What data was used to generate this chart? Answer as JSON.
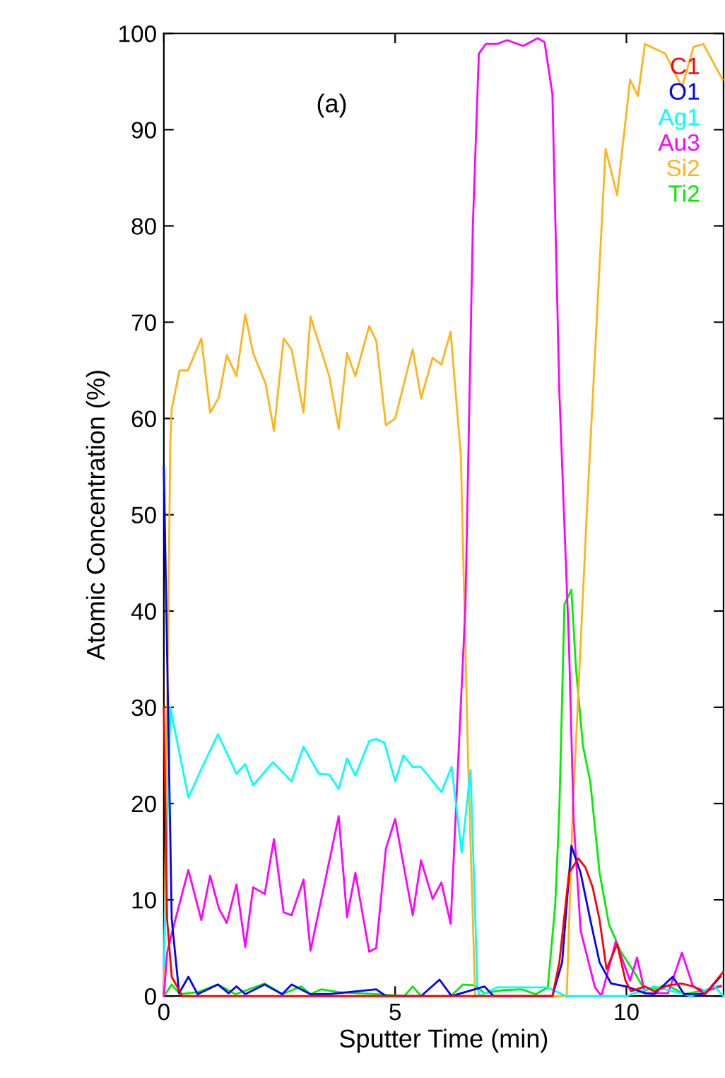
{
  "chart_data": {
    "type": "line",
    "xlabel": "Sputter Time (min)",
    "ylabel": "Atomic Concentration (%)",
    "annotations": [
      "(a)"
    ],
    "xlim": [
      0,
      12.1
    ],
    "xticks": [
      0,
      5,
      10
    ],
    "ylim": [
      0,
      100
    ],
    "yticks": [
      0,
      10,
      20,
      30,
      40,
      50,
      60,
      70,
      80,
      90,
      100
    ],
    "grid": false,
    "legend": "top right",
    "marker": "none",
    "line_style": "solid",
    "series": [
      {
        "name": "C1",
        "color": "#ff0000",
        "x": [
          0,
          0.07,
          0.17,
          0.4,
          1,
          2,
          3,
          4,
          5,
          6,
          7,
          8,
          8.4,
          8.55,
          8.76,
          8.96,
          9.11,
          9.27,
          9.42,
          9.57,
          9.8,
          9.98,
          10.1,
          10.4,
          10.6,
          10.9,
          11.2,
          11.45,
          11.7,
          12.09
        ],
        "values": [
          30,
          8,
          2,
          0,
          0,
          0,
          0,
          0,
          0,
          0,
          0,
          0,
          0,
          3.5,
          12.8,
          14.3,
          13.4,
          11.3,
          7.9,
          2.8,
          5.4,
          1.6,
          0.5,
          1,
          0.5,
          1.1,
          1.3,
          1,
          0.2,
          2.5
        ]
      },
      {
        "name": "O1",
        "color": "#0000ff",
        "x": [
          0,
          0.17,
          0.33,
          0.53,
          0.73,
          1.17,
          1.4,
          1.57,
          1.76,
          2.18,
          2.56,
          2.76,
          3.17,
          3.58,
          4.59,
          4.8,
          5.56,
          5.96,
          6.22,
          6.93,
          7.13,
          8.4,
          8.61,
          8.81,
          9.01,
          9.22,
          9.42,
          9.67,
          10.0,
          10.4,
          10.6,
          11.0,
          11.25,
          11.7,
          12.03
        ],
        "values": [
          55,
          8,
          0.3,
          2,
          0.2,
          1.2,
          0.3,
          1,
          0.2,
          1.2,
          0.2,
          1.2,
          0.2,
          0.2,
          0.7,
          0,
          0,
          1.7,
          0,
          1,
          0,
          0,
          3.5,
          15.6,
          12.8,
          7.9,
          3.5,
          1.3,
          1,
          0.3,
          0.2,
          2,
          0.2,
          0.2,
          2
        ]
      },
      {
        "name": "Ag1",
        "color": "#00ffff",
        "x": [
          0,
          0.14,
          0.53,
          0.81,
          1.17,
          1.57,
          1.76,
          1.93,
          2.36,
          2.76,
          3.02,
          3.35,
          3.58,
          3.78,
          3.96,
          4.14,
          4.44,
          4.59,
          4.77,
          5.0,
          5.18,
          5.38,
          5.56,
          6.0,
          6.22,
          6.44,
          6.63,
          6.78,
          6.82,
          7.2,
          7.8,
          8.3,
          8.7,
          10.0,
          10.6,
          11.0,
          11.4,
          11.9,
          12.1
        ],
        "values": [
          3,
          30,
          20.6,
          23.6,
          27.2,
          23.1,
          24.1,
          21.9,
          24.3,
          22.3,
          25.9,
          23.1,
          23,
          21.5,
          24.7,
          22.9,
          26.5,
          26.7,
          26.3,
          22.3,
          25,
          23.8,
          23.8,
          21.2,
          23.8,
          14.9,
          23.5,
          0.9,
          0,
          0.9,
          0.9,
          0.9,
          0,
          0,
          1,
          0.5,
          0,
          1,
          0
        ]
      },
      {
        "name": "Au3",
        "color": "#ff00ff",
        "x": [
          0,
          0.07,
          0.17,
          0.53,
          0.81,
          1.0,
          1.19,
          1.36,
          1.57,
          1.76,
          1.93,
          2.18,
          2.38,
          2.59,
          2.76,
          3.02,
          3.17,
          3.78,
          3.96,
          4.14,
          4.44,
          4.59,
          4.8,
          5.0,
          5.38,
          5.56,
          5.81,
          6.0,
          6.2,
          6.52,
          6.68,
          6.81,
          6.96,
          7.2,
          7.42,
          7.77,
          8.08,
          8.23,
          8.4,
          8.55,
          8.76,
          8.86,
          9.01,
          9.32,
          9.46,
          9.77,
          10.08,
          10.23,
          10.4,
          10.9,
          11.2,
          11.44,
          11.7,
          12.05
        ],
        "values": [
          0,
          4.5,
          6.5,
          13.1,
          7.9,
          12.5,
          9.1,
          7.6,
          11.6,
          5.1,
          11.3,
          10.6,
          16.3,
          8.7,
          8.4,
          12.1,
          4.7,
          18.7,
          8.2,
          12.8,
          4.6,
          5,
          15.3,
          18.4,
          8.4,
          14.1,
          10.1,
          11.8,
          7.5,
          40.6,
          80,
          97.9,
          98.9,
          98.9,
          99.3,
          98.7,
          99.5,
          99.1,
          93.7,
          62.8,
          36.3,
          18.2,
          6.8,
          0.9,
          0,
          5.7,
          1.6,
          4,
          0.3,
          0.3,
          4.5,
          1,
          0.5,
          1
        ]
      },
      {
        "name": "Si2",
        "color": "#ffb31a",
        "x": [
          0,
          0.14,
          0.17,
          0.34,
          0.52,
          0.81,
          1.0,
          1.19,
          1.36,
          1.57,
          1.76,
          1.93,
          2.2,
          2.38,
          2.59,
          2.76,
          3.02,
          3.17,
          3.58,
          3.78,
          3.96,
          4.14,
          4.44,
          4.59,
          4.8,
          5.0,
          5.38,
          5.56,
          5.81,
          6.0,
          6.2,
          6.42,
          6.58,
          6.73,
          8.71,
          8.84,
          9.15,
          9.55,
          9.8,
          10.08,
          10.25,
          10.4,
          10.84,
          11.2,
          11.45,
          11.66,
          12.08
        ],
        "values": [
          0,
          57.5,
          61,
          65,
          65,
          68.3,
          60.6,
          62.2,
          66.6,
          64.4,
          70.8,
          66.8,
          63.6,
          58.7,
          68.3,
          67.2,
          60.6,
          70.6,
          64.3,
          58.9,
          66.8,
          64.4,
          69.6,
          68.1,
          59.3,
          60,
          67.2,
          62.1,
          66.3,
          65.6,
          69,
          56.2,
          24,
          0,
          0,
          19.3,
          50.8,
          88,
          83.2,
          95.2,
          93.5,
          98.9,
          97.9,
          94.4,
          98.6,
          98.9,
          95.2
        ]
      },
      {
        "name": "Ti2",
        "color": "#00ee00",
        "x": [
          0,
          0.17,
          0.35,
          0.73,
          1.17,
          1.55,
          2.18,
          2.56,
          2.97,
          3.17,
          3.4,
          3.78,
          4.59,
          5.2,
          5.38,
          5.56,
          6.2,
          6.47,
          6.73,
          6.93,
          7.3,
          7.73,
          8.04,
          8.3,
          8.46,
          8.55,
          8.66,
          8.81,
          8.91,
          9.06,
          9.22,
          9.42,
          9.62,
          9.88,
          10.18,
          10.4,
          10.9,
          11.25,
          11.7,
          12.03
        ],
        "values": [
          0,
          1.2,
          0.2,
          0.4,
          1.2,
          0.2,
          1.3,
          0.2,
          1,
          0.2,
          0.7,
          0.4,
          0.2,
          0,
          1,
          0,
          0,
          1.2,
          1.1,
          0.3,
          0.6,
          0.7,
          0.2,
          0.9,
          9.4,
          19.3,
          40.7,
          42.2,
          34,
          26,
          22.2,
          12.8,
          7.5,
          4.6,
          2.4,
          0.6,
          1.1,
          0.2,
          0.6,
          1.1
        ]
      }
    ]
  }
}
